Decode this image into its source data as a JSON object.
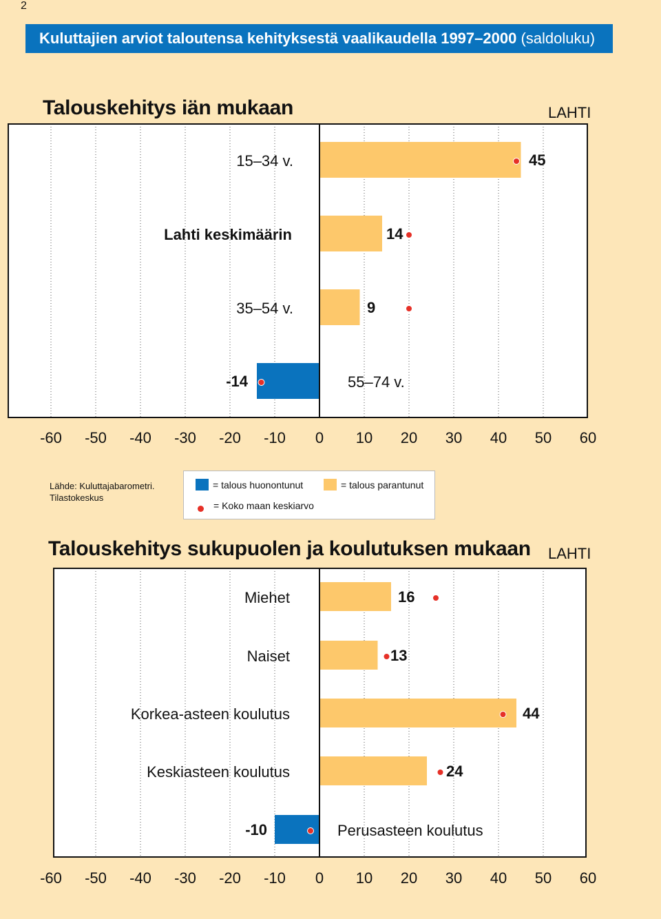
{
  "page_number": "2",
  "banner": {
    "title": "Kuluttajien arviot taloutensa kehityksestä vaalikaudella 1997–2000",
    "subtitle": "(saldoluku)"
  },
  "source": {
    "line1": "Lähde: Kuluttajabarometri.",
    "line2": "Tilastokeskus"
  },
  "legend": {
    "negative": "= talous huonontunut",
    "positive": "= talous parantunut",
    "dot": "= Koko maan keskiarvo"
  },
  "colors": {
    "negative": "#0a73be",
    "positive": "#fdc86b",
    "dot": "#e63027",
    "background": "#fde6b8"
  },
  "chart_data": [
    {
      "type": "bar",
      "orientation": "horizontal",
      "title": "Talouskehitys iän mukaan",
      "corner_label": "LAHTI",
      "xlim": [
        -60,
        60
      ],
      "xticks": [
        -60,
        -50,
        -40,
        -30,
        -20,
        -10,
        0,
        10,
        20,
        30,
        40,
        50,
        60
      ],
      "grid": true,
      "categories": [
        "15–34 v.",
        "Lahti keskimäärin",
        "35–54 v.",
        "55–74 v."
      ],
      "values": [
        45,
        14,
        9,
        -14
      ],
      "value_labels": [
        "45",
        "14",
        "9",
        "-14"
      ],
      "national_average": [
        44,
        20,
        20,
        -13
      ]
    },
    {
      "type": "bar",
      "orientation": "horizontal",
      "title": "Talouskehitys sukupuolen ja koulutuksen mukaan",
      "corner_label": "LAHTI",
      "xlim": [
        -60,
        60
      ],
      "xticks": [
        -60,
        -50,
        -40,
        -30,
        -20,
        -10,
        0,
        10,
        20,
        30,
        40,
        50,
        60
      ],
      "grid": true,
      "categories": [
        "Miehet",
        "Naiset",
        "Korkea-asteen koulutus",
        "Keskiasteen koulutus",
        "Perusasteen koulutus"
      ],
      "values": [
        16,
        13,
        44,
        24,
        -10
      ],
      "value_labels": [
        "16",
        "13",
        "44",
        "24",
        "-10"
      ],
      "national_average": [
        26,
        15,
        41,
        27,
        -2
      ]
    }
  ]
}
